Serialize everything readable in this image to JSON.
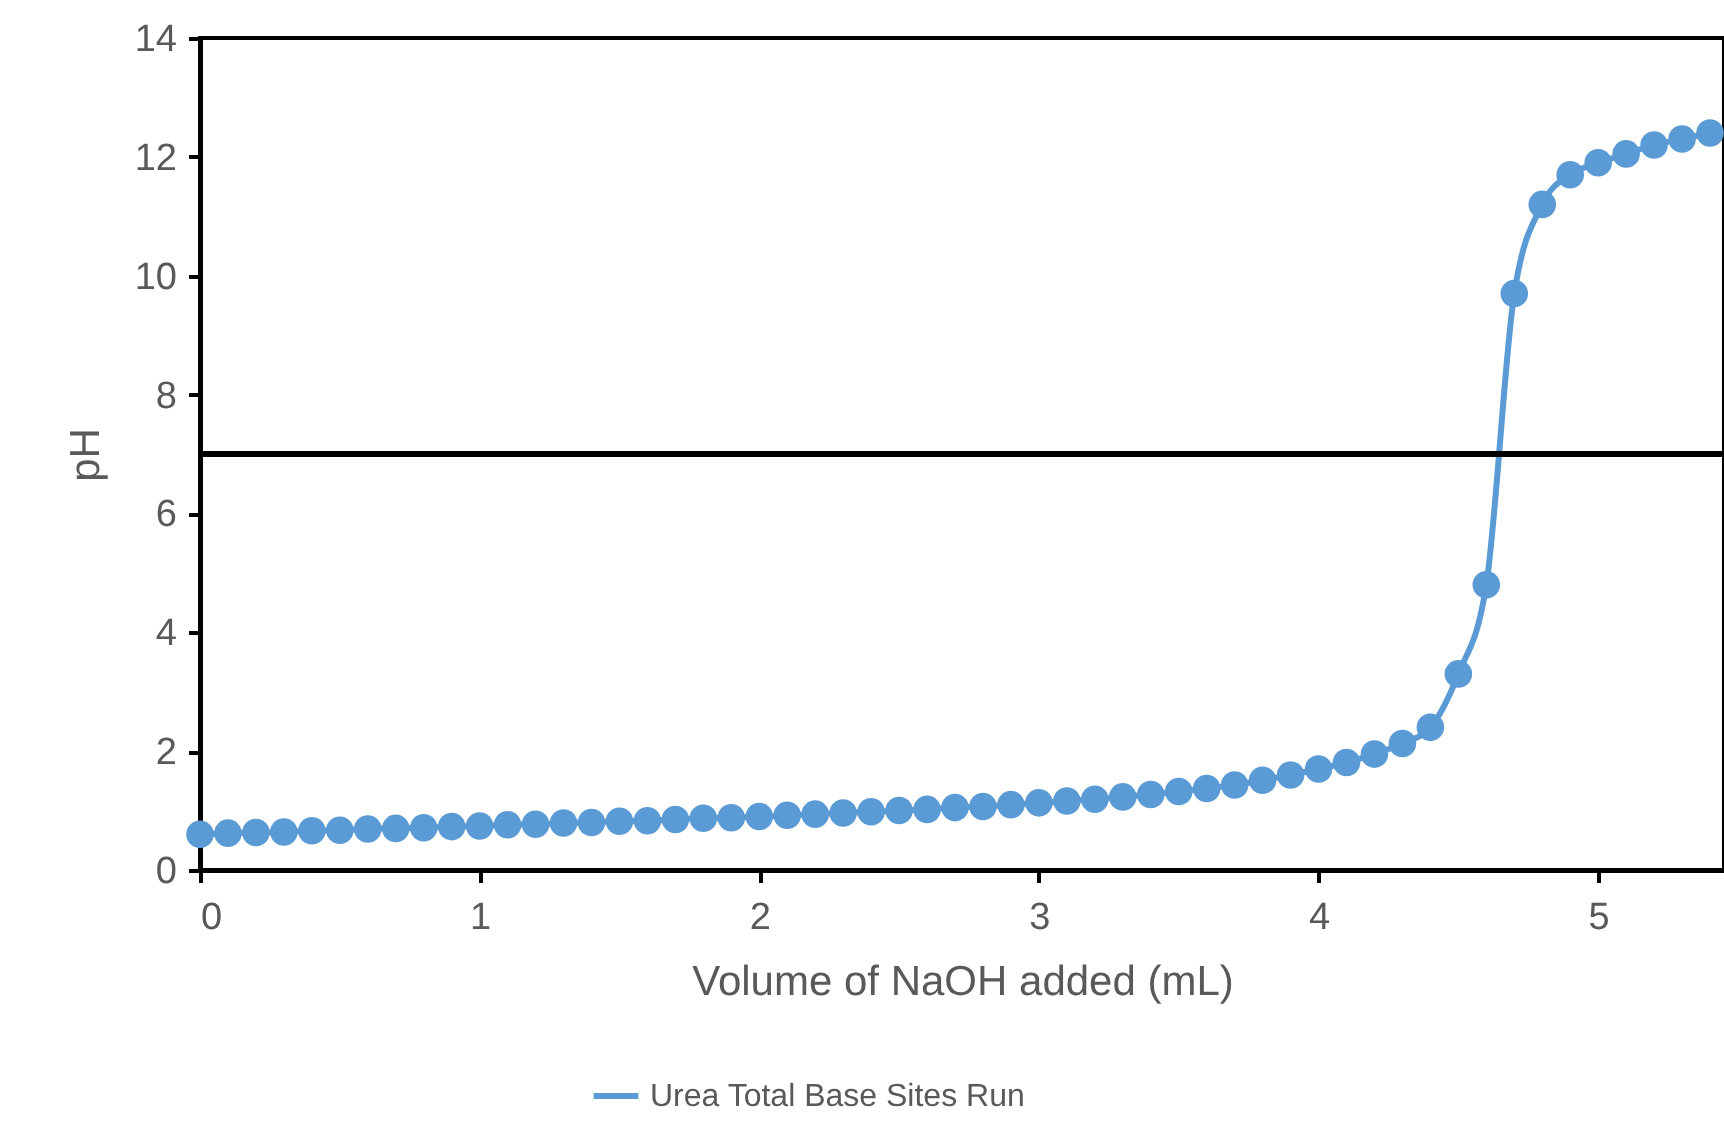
{
  "chart_data": {
    "type": "line",
    "xlabel": "Volume of NaOH added (mL)",
    "ylabel": "pH",
    "x": [
      0,
      0.1,
      0.2,
      0.3,
      0.4,
      0.5,
      0.6,
      0.7,
      0.8,
      0.9,
      1.0,
      1.1,
      1.2,
      1.3,
      1.4,
      1.5,
      1.6,
      1.7,
      1.8,
      1.9,
      2.0,
      2.1,
      2.2,
      2.3,
      2.4,
      2.5,
      2.6,
      2.7,
      2.8,
      2.9,
      3.0,
      3.1,
      3.2,
      3.3,
      3.4,
      3.5,
      3.6,
      3.7,
      3.8,
      3.9,
      4.0,
      4.1,
      4.2,
      4.3,
      4.4,
      4.5,
      4.6,
      4.7,
      4.8,
      4.9,
      5.0,
      5.1,
      5.2,
      5.3,
      5.4
    ],
    "series": [
      {
        "name": "Urea Total Base Sites Run",
        "color": "#5b9bd5",
        "values": [
          0.6,
          0.62,
          0.63,
          0.64,
          0.66,
          0.67,
          0.69,
          0.7,
          0.71,
          0.73,
          0.74,
          0.76,
          0.77,
          0.79,
          0.8,
          0.82,
          0.83,
          0.85,
          0.87,
          0.88,
          0.9,
          0.92,
          0.94,
          0.96,
          0.98,
          1.0,
          1.02,
          1.05,
          1.07,
          1.1,
          1.13,
          1.16,
          1.19,
          1.23,
          1.27,
          1.32,
          1.37,
          1.43,
          1.51,
          1.6,
          1.7,
          1.81,
          1.95,
          2.13,
          2.4,
          3.3,
          4.8,
          9.7,
          11.2,
          11.7,
          11.9,
          12.05,
          12.2,
          12.3,
          12.4
        ]
      }
    ],
    "xlim": [
      0,
      5.45
    ],
    "xticks": [
      0,
      1,
      2,
      3,
      4,
      5
    ],
    "ylim": [
      0,
      14
    ],
    "yticks": [
      0,
      2,
      4,
      6,
      8,
      10,
      12,
      14
    ],
    "ref_lines": [
      {
        "axis": "y",
        "value": 7,
        "color": "#000000"
      }
    ],
    "grid": false,
    "legend": "bottom",
    "marker": "circle",
    "line_style": "solid"
  }
}
